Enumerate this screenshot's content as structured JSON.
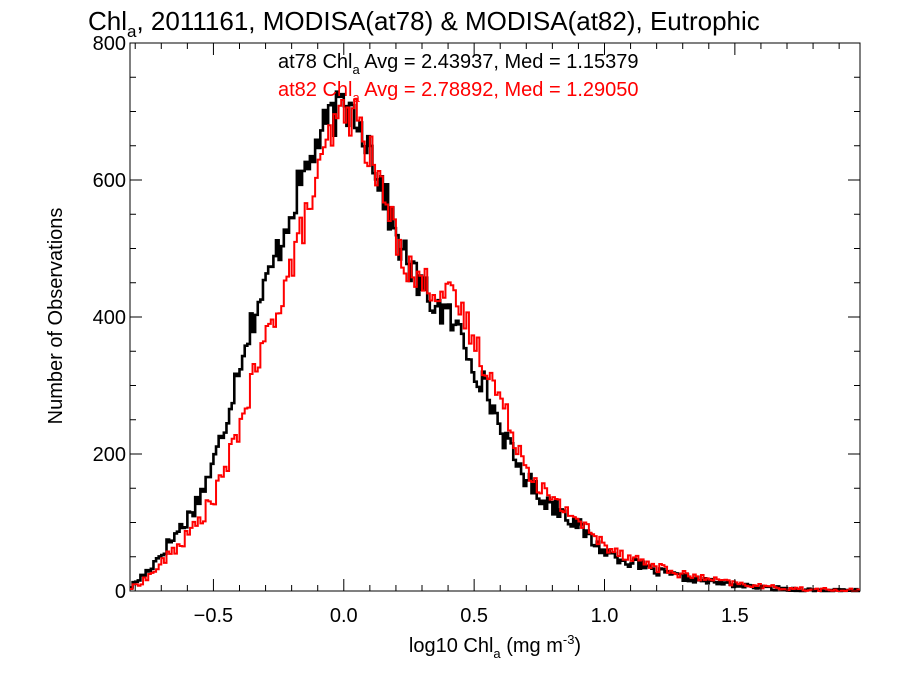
{
  "chart_data": {
    "type": "histogram",
    "title_main": "Chl",
    "title_sub": "a",
    "title_rest": ", 2011161, MODISA(at78) & MODISA(at82), Eutrophic",
    "xlabel_pre": "log10 Chl",
    "xlabel_sub": "a",
    "xlabel_mid": " (mg m",
    "xlabel_sup": "-3",
    "xlabel_post": ")",
    "ylabel": "Number of Observations",
    "xlim": [
      -0.82,
      1.98
    ],
    "ylim": [
      0,
      800
    ],
    "x_ticks": [
      -0.5,
      0.0,
      0.5,
      1.0,
      1.5
    ],
    "x_tick_labels": [
      "−0.5",
      "0.0",
      "0.5",
      "1.0",
      "1.5"
    ],
    "y_ticks": [
      0,
      200,
      400,
      600,
      800
    ],
    "y_tick_labels": [
      "0",
      "200",
      "400",
      "600",
      "800"
    ],
    "bin_width": 0.01,
    "grid": false,
    "series": [
      {
        "name": "at78",
        "color": "#000000",
        "stat_prefix": "at78 Chl",
        "stat_sub": "a",
        "stat_rest": " Avg = 2.43937, Med = 1.15379",
        "points": [
          [
            -0.82,
            5
          ],
          [
            -0.75,
            30
          ],
          [
            -0.7,
            55
          ],
          [
            -0.65,
            80
          ],
          [
            -0.6,
            105
          ],
          [
            -0.55,
            140
          ],
          [
            -0.5,
            185
          ],
          [
            -0.45,
            250
          ],
          [
            -0.4,
            335
          ],
          [
            -0.35,
            395
          ],
          [
            -0.3,
            445
          ],
          [
            -0.25,
            500
          ],
          [
            -0.2,
            560
          ],
          [
            -0.15,
            610
          ],
          [
            -0.1,
            655
          ],
          [
            -0.05,
            690
          ],
          [
            0.0,
            705
          ],
          [
            0.05,
            700
          ],
          [
            0.1,
            650
          ],
          [
            0.15,
            585
          ],
          [
            0.2,
            520
          ],
          [
            0.25,
            475
          ],
          [
            0.3,
            440
          ],
          [
            0.35,
            420
          ],
          [
            0.4,
            400
          ],
          [
            0.45,
            375
          ],
          [
            0.5,
            330
          ],
          [
            0.55,
            290
          ],
          [
            0.6,
            240
          ],
          [
            0.65,
            195
          ],
          [
            0.7,
            165
          ],
          [
            0.75,
            140
          ],
          [
            0.8,
            125
          ],
          [
            0.85,
            115
          ],
          [
            0.9,
            95
          ],
          [
            0.95,
            75
          ],
          [
            1.0,
            58
          ],
          [
            1.1,
            42
          ],
          [
            1.2,
            28
          ],
          [
            1.3,
            20
          ],
          [
            1.4,
            14
          ],
          [
            1.5,
            9
          ],
          [
            1.6,
            5
          ],
          [
            1.7,
            3
          ],
          [
            1.8,
            1
          ],
          [
            1.9,
            0
          ],
          [
            1.98,
            0
          ]
        ]
      },
      {
        "name": "at82",
        "color": "#ff0000",
        "stat_prefix": "at82 Chl",
        "stat_sub": "a",
        "stat_rest": " Avg = 2.78892, Med = 1.29050",
        "points": [
          [
            -0.82,
            3
          ],
          [
            -0.75,
            20
          ],
          [
            -0.7,
            40
          ],
          [
            -0.65,
            60
          ],
          [
            -0.6,
            80
          ],
          [
            -0.55,
            105
          ],
          [
            -0.5,
            135
          ],
          [
            -0.45,
            180
          ],
          [
            -0.4,
            240
          ],
          [
            -0.35,
            305
          ],
          [
            -0.3,
            365
          ],
          [
            -0.25,
            420
          ],
          [
            -0.2,
            475
          ],
          [
            -0.15,
            540
          ],
          [
            -0.1,
            600
          ],
          [
            -0.05,
            665
          ],
          [
            0.0,
            700
          ],
          [
            0.05,
            690
          ],
          [
            0.1,
            640
          ],
          [
            0.15,
            580
          ],
          [
            0.2,
            520
          ],
          [
            0.25,
            470
          ],
          [
            0.3,
            450
          ],
          [
            0.35,
            445
          ],
          [
            0.4,
            430
          ],
          [
            0.45,
            410
          ],
          [
            0.5,
            365
          ],
          [
            0.55,
            325
          ],
          [
            0.6,
            280
          ],
          [
            0.65,
            230
          ],
          [
            0.7,
            185
          ],
          [
            0.75,
            155
          ],
          [
            0.8,
            130
          ],
          [
            0.85,
            120
          ],
          [
            0.9,
            105
          ],
          [
            0.95,
            82
          ],
          [
            1.0,
            68
          ],
          [
            1.1,
            50
          ],
          [
            1.2,
            35
          ],
          [
            1.3,
            24
          ],
          [
            1.4,
            17
          ],
          [
            1.5,
            11
          ],
          [
            1.6,
            7
          ],
          [
            1.7,
            4
          ],
          [
            1.8,
            2
          ],
          [
            1.9,
            1
          ],
          [
            1.98,
            0
          ]
        ]
      }
    ]
  }
}
